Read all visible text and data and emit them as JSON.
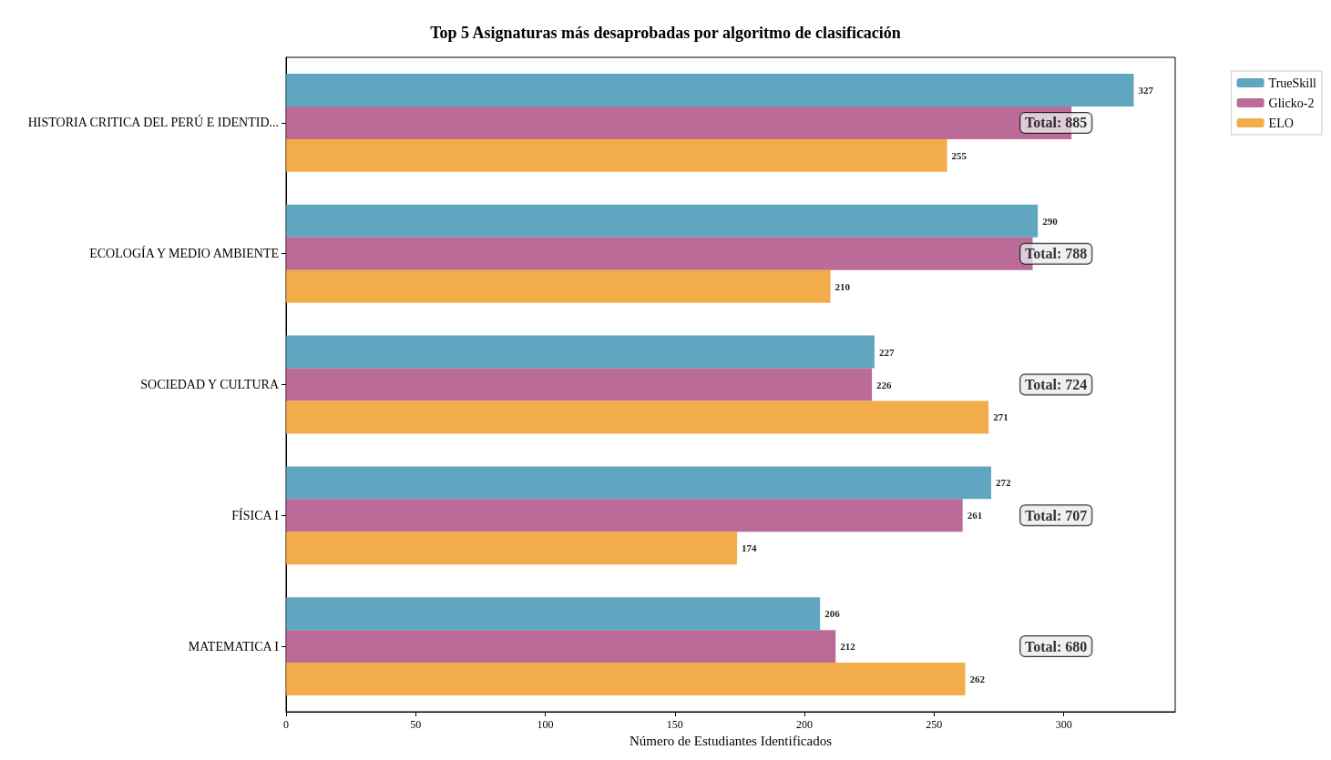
{
  "chart_data": {
    "type": "bar",
    "orientation": "horizontal",
    "title": "Top 5 Asignaturas más desaprobadas por algoritmo de clasificación",
    "xlabel": "Número de Estudiantes Identificados",
    "categories": [
      "HISTORIA CRITICA DEL PERÚ E IDENTID...",
      "ECOLOGÍA Y MEDIO AMBIENTE",
      "SOCIEDAD Y CULTURA",
      "FÍSICA I",
      "MATEMATICA I"
    ],
    "series": [
      {
        "name": "TrueSkill",
        "color": "#4a9ab8",
        "values": [
          327,
          290,
          227,
          272,
          206
        ],
        "value_labels": [
          "327",
          "290",
          "227",
          "272",
          "206"
        ]
      },
      {
        "name": "Glicko-2",
        "color": "#b0578a",
        "values": [
          303,
          288,
          226,
          261,
          212
        ],
        "value_labels": [
          null,
          null,
          "226",
          "261",
          "212"
        ]
      },
      {
        "name": "ELO",
        "color": "#f0a030",
        "values": [
          255,
          210,
          271,
          174,
          262
        ],
        "value_labels": [
          "255",
          "210",
          "271",
          "174",
          "262"
        ]
      }
    ],
    "annotations": [
      "Total: 885",
      "Total: 788",
      "Total: 724",
      "Total: 707",
      "Total: 680"
    ],
    "xlim": [
      0,
      343
    ],
    "xticks": [
      0,
      50,
      100,
      150,
      200,
      250,
      300
    ],
    "grid": false,
    "legend": "top right"
  }
}
